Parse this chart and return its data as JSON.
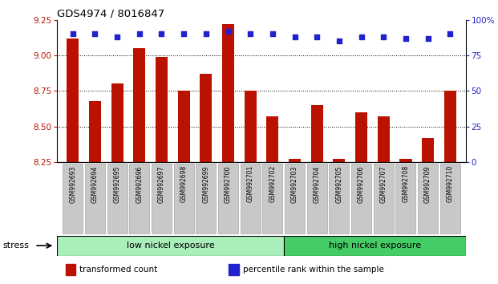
{
  "title": "GDS4974 / 8016847",
  "samples": [
    "GSM992693",
    "GSM992694",
    "GSM992695",
    "GSM992696",
    "GSM992697",
    "GSM992698",
    "GSM992699",
    "GSM992700",
    "GSM992701",
    "GSM992702",
    "GSM992703",
    "GSM992704",
    "GSM992705",
    "GSM992706",
    "GSM992707",
    "GSM992708",
    "GSM992709",
    "GSM992710"
  ],
  "transformed_counts": [
    9.12,
    8.68,
    8.8,
    9.05,
    8.99,
    8.75,
    8.87,
    9.22,
    8.75,
    8.57,
    8.27,
    8.65,
    8.27,
    8.6,
    8.57,
    8.27,
    8.42,
    8.75
  ],
  "percentile_ranks": [
    90,
    90,
    88,
    90,
    90,
    90,
    90,
    92,
    90,
    90,
    88,
    88,
    85,
    88,
    88,
    87,
    87,
    90
  ],
  "ymin": 8.25,
  "ymax": 9.25,
  "yticks": [
    8.25,
    8.5,
    8.75,
    9.0,
    9.25
  ],
  "right_yticks": [
    0,
    25,
    50,
    75,
    100
  ],
  "bar_color": "#BB1100",
  "dot_color": "#2222CC",
  "group_labels": [
    "low nickel exposure",
    "high nickel exposure"
  ],
  "low_count": 10,
  "group_colors": [
    "#AAEEBB",
    "#44CC66"
  ],
  "stress_label": "stress",
  "legend_items": [
    {
      "label": "transformed count",
      "color": "#BB1100",
      "marker": "s"
    },
    {
      "label": "percentile rank within the sample",
      "color": "#2222CC",
      "marker": "s"
    }
  ],
  "background_color": "#FFFFFF",
  "xticklabel_bg": "#C8C8C8"
}
